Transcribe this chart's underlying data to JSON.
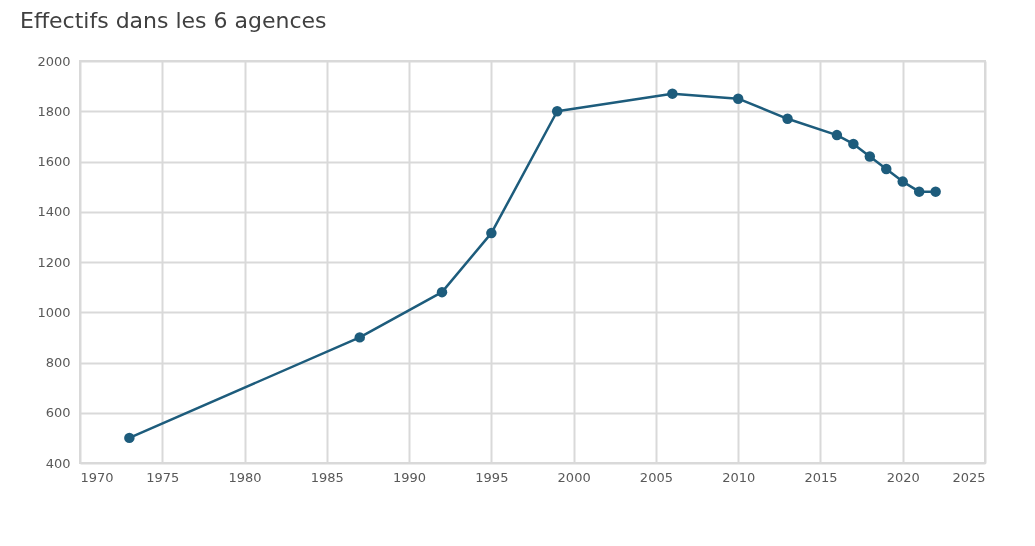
{
  "chart_data": {
    "type": "line",
    "title": "Effectifs dans les 6 agences",
    "x": [
      1973,
      1987,
      1992,
      1995,
      1999,
      2006,
      2010,
      2013,
      2016,
      2017,
      2018,
      2019,
      2020,
      2021,
      2022
    ],
    "series": [
      {
        "color": "#1d5c7c",
        "values": [
          500,
          900,
          1080,
          1315,
          1800,
          1870,
          1850,
          1770,
          1705,
          1670,
          1620,
          1570,
          1520,
          1480,
          1480
        ]
      }
    ],
    "xlim": [
      1970,
      2025
    ],
    "xticks": [
      1970,
      1975,
      1980,
      1985,
      1990,
      1995,
      2000,
      2005,
      2010,
      2015,
      2020,
      2025
    ],
    "ylim": [
      400,
      2000
    ],
    "yticks": [
      400,
      600,
      800,
      1000,
      1200,
      1400,
      1600,
      1800,
      2000
    ],
    "grid": true,
    "marker": "circle",
    "line_style": "solid"
  }
}
